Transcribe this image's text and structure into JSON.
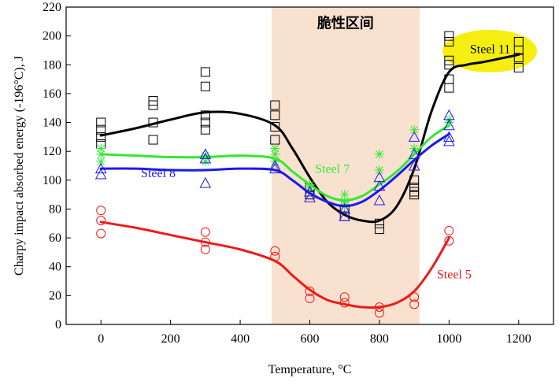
{
  "chart_data": {
    "type": "scatter",
    "title": "",
    "xlabel": "Temperature, °C",
    "ylabel": "Charpy impact absorbed energy (-196°C), J",
    "xlim": [
      -100,
      1300
    ],
    "ylim": [
      0,
      220
    ],
    "xticks": [
      0,
      200,
      400,
      600,
      800,
      1000,
      1200
    ],
    "yticks": [
      0,
      20,
      40,
      60,
      80,
      100,
      120,
      140,
      160,
      180,
      200,
      220
    ],
    "shaded_region": {
      "label": "脆性区间",
      "x_range": [
        490,
        915
      ],
      "color": "#f9e1cf"
    },
    "series": [
      {
        "name": "Steel 11",
        "marker": "square",
        "color": "#000000",
        "points": [
          [
            0,
            140
          ],
          [
            0,
            135
          ],
          [
            0,
            130
          ],
          [
            0,
            125
          ],
          [
            150,
            155
          ],
          [
            150,
            152
          ],
          [
            150,
            140
          ],
          [
            150,
            128
          ],
          [
            300,
            175
          ],
          [
            300,
            165
          ],
          [
            300,
            145
          ],
          [
            300,
            140
          ],
          [
            300,
            135
          ],
          [
            500,
            152
          ],
          [
            500,
            145
          ],
          [
            500,
            137
          ],
          [
            500,
            128
          ],
          [
            600,
            95
          ],
          [
            600,
            90
          ],
          [
            700,
            80
          ],
          [
            700,
            75
          ],
          [
            800,
            70
          ],
          [
            800,
            66
          ],
          [
            900,
            100
          ],
          [
            900,
            95
          ],
          [
            900,
            92
          ],
          [
            900,
            90
          ],
          [
            1000,
            200
          ],
          [
            1000,
            196
          ],
          [
            1000,
            183
          ],
          [
            1000,
            180
          ],
          [
            1000,
            170
          ],
          [
            1000,
            164
          ],
          [
            1200,
            196
          ],
          [
            1200,
            190
          ],
          [
            1200,
            185
          ],
          [
            1200,
            178
          ]
        ],
        "curve": [
          [
            0,
            131
          ],
          [
            100,
            136
          ],
          [
            200,
            142
          ],
          [
            300,
            147
          ],
          [
            400,
            146
          ],
          [
            500,
            138
          ],
          [
            550,
            122
          ],
          [
            600,
            102
          ],
          [
            650,
            85
          ],
          [
            700,
            76
          ],
          [
            750,
            72
          ],
          [
            800,
            72
          ],
          [
            850,
            82
          ],
          [
            900,
            108
          ],
          [
            950,
            148
          ],
          [
            1000,
            175
          ],
          [
            1050,
            180
          ],
          [
            1100,
            182
          ],
          [
            1200,
            187
          ]
        ]
      },
      {
        "name": "Steel 7",
        "marker": "asterisk",
        "color": "#33e833",
        "points": [
          [
            0,
            122
          ],
          [
            0,
            118
          ],
          [
            0,
            113
          ],
          [
            300,
            117
          ],
          [
            300,
            113
          ],
          [
            500,
            122
          ],
          [
            500,
            118
          ],
          [
            500,
            113
          ],
          [
            600,
            97
          ],
          [
            600,
            95
          ],
          [
            700,
            90
          ],
          [
            700,
            85
          ],
          [
            700,
            82
          ],
          [
            800,
            118
          ],
          [
            800,
            107
          ],
          [
            900,
            135
          ],
          [
            900,
            122
          ],
          [
            1000,
            142
          ],
          [
            1000,
            140
          ]
        ],
        "curve": [
          [
            0,
            118
          ],
          [
            100,
            117
          ],
          [
            200,
            116
          ],
          [
            300,
            116
          ],
          [
            400,
            117
          ],
          [
            500,
            115
          ],
          [
            550,
            106
          ],
          [
            600,
            97
          ],
          [
            650,
            89
          ],
          [
            700,
            86
          ],
          [
            750,
            89
          ],
          [
            800,
            97
          ],
          [
            850,
            106
          ],
          [
            900,
            118
          ],
          [
            950,
            130
          ],
          [
            1000,
            138
          ]
        ]
      },
      {
        "name": "Steel 8",
        "marker": "triangle",
        "color": "#1a1aee",
        "points": [
          [
            0,
            108
          ],
          [
            0,
            104
          ],
          [
            300,
            118
          ],
          [
            300,
            115
          ],
          [
            300,
            98
          ],
          [
            500,
            110
          ],
          [
            500,
            108
          ],
          [
            600,
            92
          ],
          [
            600,
            88
          ],
          [
            700,
            80
          ],
          [
            700,
            75
          ],
          [
            800,
            102
          ],
          [
            800,
            96
          ],
          [
            800,
            86
          ],
          [
            900,
            130
          ],
          [
            900,
            118
          ],
          [
            900,
            110
          ],
          [
            1000,
            145
          ],
          [
            1000,
            138
          ],
          [
            1000,
            130
          ],
          [
            1000,
            127
          ]
        ],
        "curve": [
          [
            0,
            108
          ],
          [
            100,
            108
          ],
          [
            200,
            107
          ],
          [
            300,
            107
          ],
          [
            400,
            108
          ],
          [
            500,
            107
          ],
          [
            550,
            100
          ],
          [
            600,
            91
          ],
          [
            650,
            85
          ],
          [
            700,
            82
          ],
          [
            750,
            85
          ],
          [
            800,
            93
          ],
          [
            850,
            103
          ],
          [
            900,
            114
          ],
          [
            950,
            124
          ],
          [
            1000,
            132
          ]
        ]
      },
      {
        "name": "Steel 5",
        "marker": "circle",
        "color": "#ee1a1a",
        "points": [
          [
            0,
            79
          ],
          [
            0,
            72
          ],
          [
            0,
            63
          ],
          [
            300,
            64
          ],
          [
            300,
            57
          ],
          [
            300,
            52
          ],
          [
            500,
            51
          ],
          [
            500,
            47
          ],
          [
            600,
            23
          ],
          [
            600,
            18
          ],
          [
            700,
            19
          ],
          [
            700,
            15
          ],
          [
            800,
            12
          ],
          [
            800,
            8
          ],
          [
            900,
            19
          ],
          [
            900,
            14
          ],
          [
            1000,
            65
          ],
          [
            1000,
            58
          ]
        ],
        "curve": [
          [
            0,
            71
          ],
          [
            100,
            67
          ],
          [
            200,
            62
          ],
          [
            300,
            57
          ],
          [
            400,
            52
          ],
          [
            500,
            44
          ],
          [
            550,
            34
          ],
          [
            600,
            24
          ],
          [
            650,
            17
          ],
          [
            700,
            14
          ],
          [
            750,
            12
          ],
          [
            800,
            12
          ],
          [
            850,
            15
          ],
          [
            900,
            23
          ],
          [
            950,
            39
          ],
          [
            1000,
            60
          ]
        ]
      }
    ],
    "labels": [
      {
        "text": "Steel 11",
        "x": 1060,
        "y": 188,
        "color": "#000000",
        "highlight": "#f5ee10"
      },
      {
        "text": "Steel 7",
        "x": 615,
        "y": 105,
        "color": "#33e833",
        "highlight": ""
      },
      {
        "text": "Steel 8",
        "x": 115,
        "y": 102,
        "color": "#1a1aee",
        "highlight": ""
      },
      {
        "text": "Steel 5",
        "x": 965,
        "y": 32,
        "color": "#ee1a1a",
        "highlight": ""
      }
    ]
  }
}
